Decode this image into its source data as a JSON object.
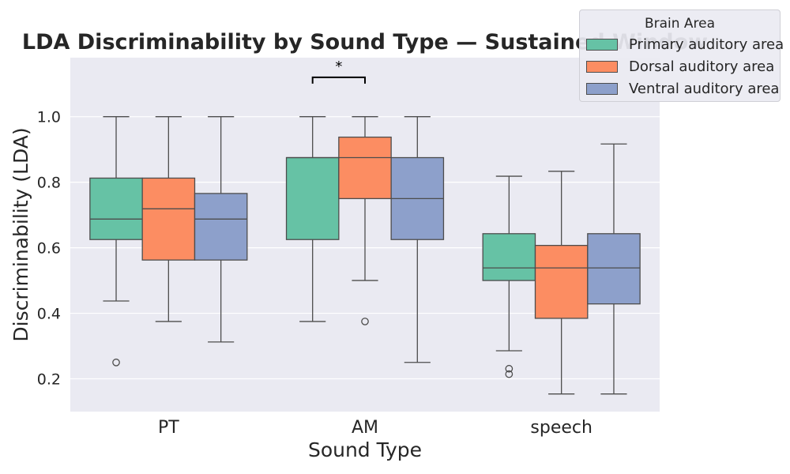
{
  "chart_data": {
    "type": "box",
    "title": "LDA Discriminability by Sound Type — Sustained Window",
    "xlabel": "Sound Type",
    "ylabel": "Discriminability (LDA)",
    "ylim": [
      0.1,
      1.18
    ],
    "yticks": [
      "0.2",
      "0.4",
      "0.6",
      "0.8",
      "1.0"
    ],
    "categories": [
      "PT",
      "AM",
      "speech"
    ],
    "grid": true,
    "legend": {
      "title": "Brain Area",
      "placement": "top-right",
      "entries": [
        "Primary auditory area",
        "Dorsal auditory area",
        "Ventral auditory area"
      ]
    },
    "series": [
      {
        "name": "Primary auditory area",
        "color": "#66c2a5",
        "boxes": [
          {
            "category": "PT",
            "whisker_low": 0.4375,
            "q1": 0.625,
            "median": 0.6875,
            "q3": 0.8125,
            "whisker_high": 1.0,
            "outliers": [
              0.25
            ]
          },
          {
            "category": "AM",
            "whisker_low": 0.375,
            "q1": 0.625,
            "median": 0.875,
            "q3": 0.875,
            "whisker_high": 1.0,
            "outliers": []
          },
          {
            "category": "speech",
            "whisker_low": 0.2857,
            "q1": 0.5,
            "median": 0.5385,
            "q3": 0.6429,
            "whisker_high": 0.8182,
            "outliers": [
              0.2308,
              0.2143
            ]
          }
        ]
      },
      {
        "name": "Dorsal auditory area",
        "color": "#fc8d62",
        "boxes": [
          {
            "category": "PT",
            "whisker_low": 0.375,
            "q1": 0.5625,
            "median": 0.7188,
            "q3": 0.8125,
            "whisker_high": 1.0,
            "outliers": []
          },
          {
            "category": "AM",
            "whisker_low": 0.5,
            "q1": 0.75,
            "median": 0.875,
            "q3": 0.9375,
            "whisker_high": 1.0,
            "outliers": [
              0.375
            ]
          },
          {
            "category": "speech",
            "whisker_low": 0.1538,
            "q1": 0.3846,
            "median": 0.5385,
            "q3": 0.6071,
            "whisker_high": 0.8333,
            "outliers": []
          }
        ]
      },
      {
        "name": "Ventral auditory area",
        "color": "#8da0cb",
        "boxes": [
          {
            "category": "PT",
            "whisker_low": 0.3125,
            "q1": 0.5625,
            "median": 0.6875,
            "q3": 0.7656,
            "whisker_high": 1.0,
            "outliers": []
          },
          {
            "category": "AM",
            "whisker_low": 0.25,
            "q1": 0.625,
            "median": 0.75,
            "q3": 0.875,
            "whisker_high": 1.0,
            "outliers": []
          },
          {
            "category": "speech",
            "whisker_low": 0.1538,
            "q1": 0.4286,
            "median": 0.5385,
            "q3": 0.6429,
            "whisker_high": 0.9167,
            "outliers": []
          }
        ]
      }
    ],
    "annotations": [
      {
        "type": "significance-bracket",
        "category": "AM",
        "from_series": 0,
        "to_series": 1,
        "y": 1.12,
        "label": "*"
      }
    ]
  }
}
